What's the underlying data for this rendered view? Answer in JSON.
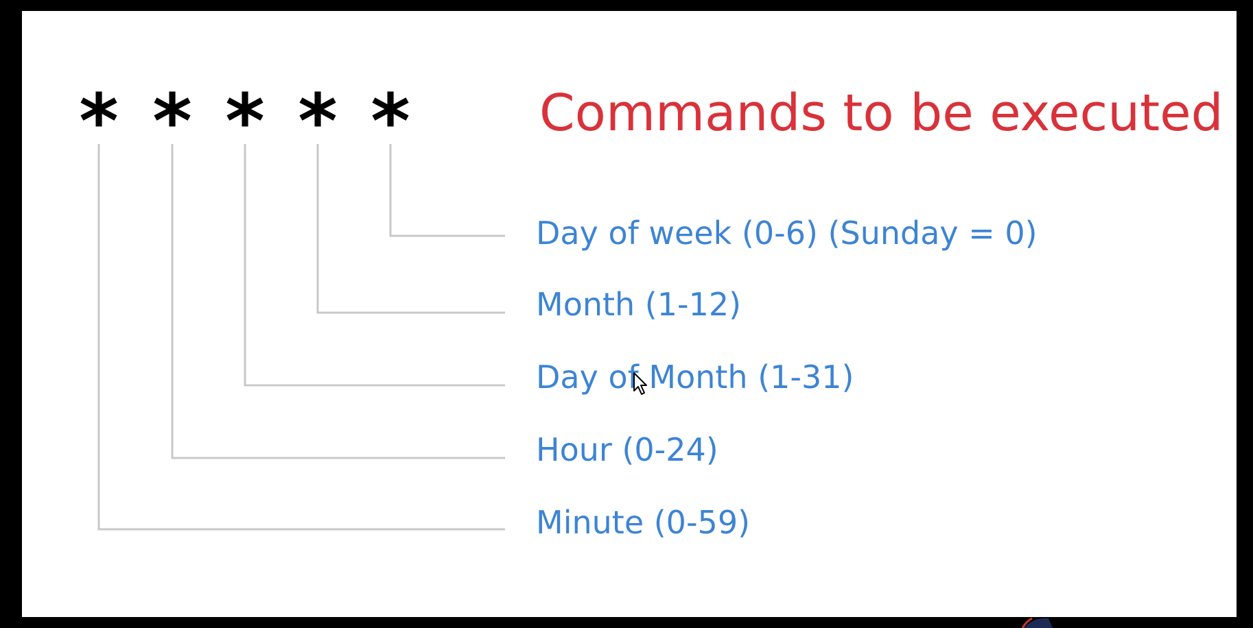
{
  "title": "Commands to be executed",
  "fields": [
    {
      "symbol": "*",
      "label": "Minute (0-59)"
    },
    {
      "symbol": "*",
      "label": "Hour (0-24)"
    },
    {
      "symbol": "*",
      "label": "Day of Month (1-31)"
    },
    {
      "symbol": "*",
      "label": "Month (1-12)"
    },
    {
      "symbol": "*",
      "label": "Day of week (0-6) (Sunday = 0)"
    }
  ],
  "colors": {
    "background": "#ffffff",
    "frame": "#000000",
    "title": "#d9323a",
    "label": "#3d84d4",
    "connector": "#c8c8c8",
    "asterisk": "#000000"
  },
  "icons": {
    "pointer": "mouse-cursor-icon"
  }
}
